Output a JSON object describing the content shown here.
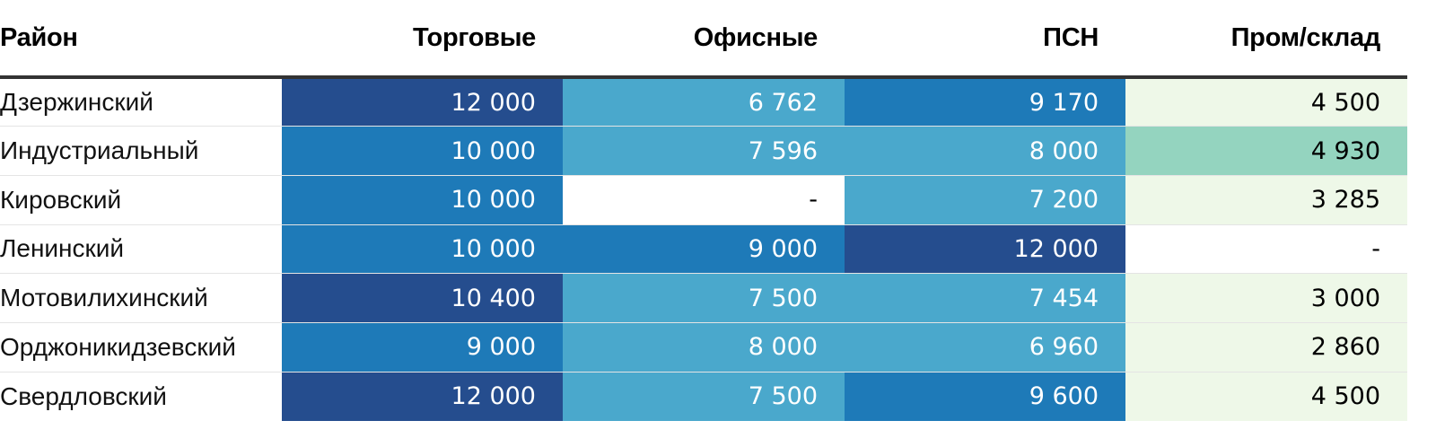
{
  "chart_data": {
    "type": "table",
    "columns": [
      "Район",
      "Торговые",
      "Офисные",
      "ПСН",
      "Пром/склад"
    ],
    "rows": [
      {
        "district": "Дзержинский",
        "values": [
          "12 000",
          "6 762",
          "9 170",
          "4 500"
        ],
        "levels": [
          4,
          2,
          3,
          1
        ]
      },
      {
        "district": "Индустриальный",
        "values": [
          "10 000",
          "7 596",
          "8 000",
          "4 930"
        ],
        "levels": [
          3,
          2,
          2,
          5
        ]
      },
      {
        "district": "Кировский",
        "values": [
          "10 000",
          "-",
          "7 200",
          "3 285"
        ],
        "levels": [
          3,
          0,
          2,
          1
        ]
      },
      {
        "district": "Ленинский",
        "values": [
          "10 000",
          "9 000",
          "12 000",
          "-"
        ],
        "levels": [
          3,
          3,
          4,
          0
        ]
      },
      {
        "district": "Мотовилихинский",
        "values": [
          "10 400",
          "7 500",
          "7 454",
          "3 000"
        ],
        "levels": [
          4,
          2,
          2,
          1
        ]
      },
      {
        "district": "Орджоникидзевский",
        "values": [
          "9 000",
          "8 000",
          "6 960",
          "2 860"
        ],
        "levels": [
          3,
          2,
          2,
          1
        ]
      },
      {
        "district": "Свердловский",
        "values": [
          "12 000",
          "7 500",
          "9 600",
          "4 500"
        ],
        "levels": [
          4,
          2,
          3,
          1
        ]
      }
    ],
    "level_colors": {
      "0": "#ffffff",
      "1": "#eef8e8",
      "2": "#4aa8cc",
      "3": "#1e7ab8",
      "4": "#254d8e",
      "5": "#94d4bf"
    },
    "dark_text_levels": [
      2,
      3,
      4
    ]
  }
}
